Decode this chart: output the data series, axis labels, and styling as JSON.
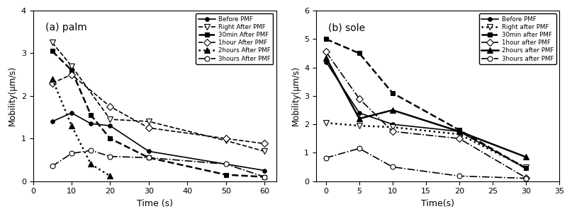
{
  "palm": {
    "title": "(a) palm",
    "xlabel": "Time (s)",
    "ylabel": "Mobility(μm/s)",
    "xlim": [
      2,
      63
    ],
    "ylim": [
      0,
      4
    ],
    "xticks": [
      0,
      10,
      20,
      30,
      40,
      50,
      60
    ],
    "yticks": [
      0,
      1,
      2,
      3,
      4
    ],
    "series": [
      {
        "label": "Before PMF",
        "x": [
          5,
          10,
          15,
          20,
          30,
          50,
          60
        ],
        "y": [
          1.4,
          1.6,
          1.35,
          1.3,
          0.7,
          0.4,
          0.25
        ],
        "linestyle": "-",
        "marker": "o",
        "markerfacecolor": "black",
        "markersize": 4,
        "linewidth": 1.2,
        "color": "black"
      },
      {
        "label": "Right After PMF",
        "x": [
          5,
          10,
          20,
          30,
          50,
          60
        ],
        "y": [
          3.25,
          2.7,
          1.45,
          1.4,
          0.95,
          0.7
        ],
        "linestyle": "--",
        "marker": "v",
        "markerfacecolor": "white",
        "markersize": 6,
        "linewidth": 1.2,
        "color": "black"
      },
      {
        "label": "30min After PMF",
        "x": [
          5,
          10,
          15,
          20,
          30,
          50,
          60
        ],
        "y": [
          3.05,
          2.6,
          1.55,
          1.0,
          0.55,
          0.15,
          0.1
        ],
        "linestyle": "--",
        "marker": "s",
        "markerfacecolor": "black",
        "markersize": 5,
        "linewidth": 1.8,
        "color": "black"
      },
      {
        "label": "1hour After PMF",
        "x": [
          5,
          10,
          20,
          30,
          50,
          60
        ],
        "y": [
          2.3,
          2.5,
          1.75,
          1.25,
          1.0,
          0.88
        ],
        "linestyle": "--",
        "marker": "D",
        "markerfacecolor": "white",
        "markersize": 5,
        "linewidth": 1.2,
        "color": "black"
      },
      {
        "label": "2hours After PMF",
        "x": [
          5,
          10,
          15,
          20
        ],
        "y": [
          2.4,
          1.3,
          0.4,
          0.12
        ],
        "linestyle": ":",
        "marker": "^",
        "markerfacecolor": "black",
        "markersize": 6,
        "linewidth": 1.8,
        "color": "black"
      },
      {
        "label": "3hours After PMF",
        "x": [
          5,
          10,
          15,
          20,
          30,
          50,
          60
        ],
        "y": [
          0.35,
          0.65,
          0.72,
          0.58,
          0.55,
          0.4,
          0.1
        ],
        "linestyle": "-.",
        "marker": "o",
        "markerfacecolor": "white",
        "markersize": 5,
        "linewidth": 1.2,
        "color": "black"
      }
    ]
  },
  "sole": {
    "title": "(b) sole",
    "xlabel": "Time(s)",
    "ylabel": "Mobility(μm/s)",
    "xlim": [
      -1.5,
      33
    ],
    "ylim": [
      0,
      6
    ],
    "xticks": [
      0,
      5,
      10,
      15,
      20,
      25,
      30,
      35
    ],
    "yticks": [
      0,
      1,
      2,
      3,
      4,
      5,
      6
    ],
    "series": [
      {
        "label": "Before PMF",
        "x": [
          0,
          5,
          10,
          20,
          30
        ],
        "y": [
          4.2,
          2.4,
          2.0,
          1.75,
          0.45
        ],
        "linestyle": "-",
        "marker": "o",
        "markerfacecolor": "black",
        "markersize": 4,
        "linewidth": 1.2,
        "color": "black"
      },
      {
        "label": "Right after PMF",
        "x": [
          0,
          5,
          10,
          20,
          30
        ],
        "y": [
          2.05,
          1.95,
          1.9,
          1.65,
          0.48
        ],
        "linestyle": ":",
        "marker": "v",
        "markerfacecolor": "white",
        "markersize": 6,
        "linewidth": 1.8,
        "color": "black"
      },
      {
        "label": "30min after PMF",
        "x": [
          0,
          5,
          10,
          20,
          30
        ],
        "y": [
          5.0,
          4.5,
          3.1,
          1.8,
          0.45
        ],
        "linestyle": "--",
        "marker": "s",
        "markerfacecolor": "black",
        "markersize": 5,
        "linewidth": 1.8,
        "color": "black"
      },
      {
        "label": "1hour after PMF",
        "x": [
          0,
          5,
          10,
          20,
          30
        ],
        "y": [
          4.55,
          2.9,
          1.75,
          1.5,
          0.12
        ],
        "linestyle": "-.",
        "marker": "D",
        "markerfacecolor": "white",
        "markersize": 5,
        "linewidth": 1.2,
        "color": "black"
      },
      {
        "label": "2hours after PMF",
        "x": [
          0,
          5,
          10,
          20,
          30
        ],
        "y": [
          4.35,
          2.2,
          2.5,
          1.75,
          0.85
        ],
        "linestyle": "-",
        "marker": "^",
        "markerfacecolor": "black",
        "markersize": 6,
        "linewidth": 1.8,
        "color": "black"
      },
      {
        "label": "3hours after PMF",
        "x": [
          0,
          5,
          10,
          20,
          30
        ],
        "y": [
          0.82,
          1.15,
          0.5,
          0.18,
          0.1
        ],
        "linestyle": "-.",
        "marker": "o",
        "markerfacecolor": "white",
        "markersize": 5,
        "linewidth": 1.2,
        "color": "black"
      }
    ]
  }
}
